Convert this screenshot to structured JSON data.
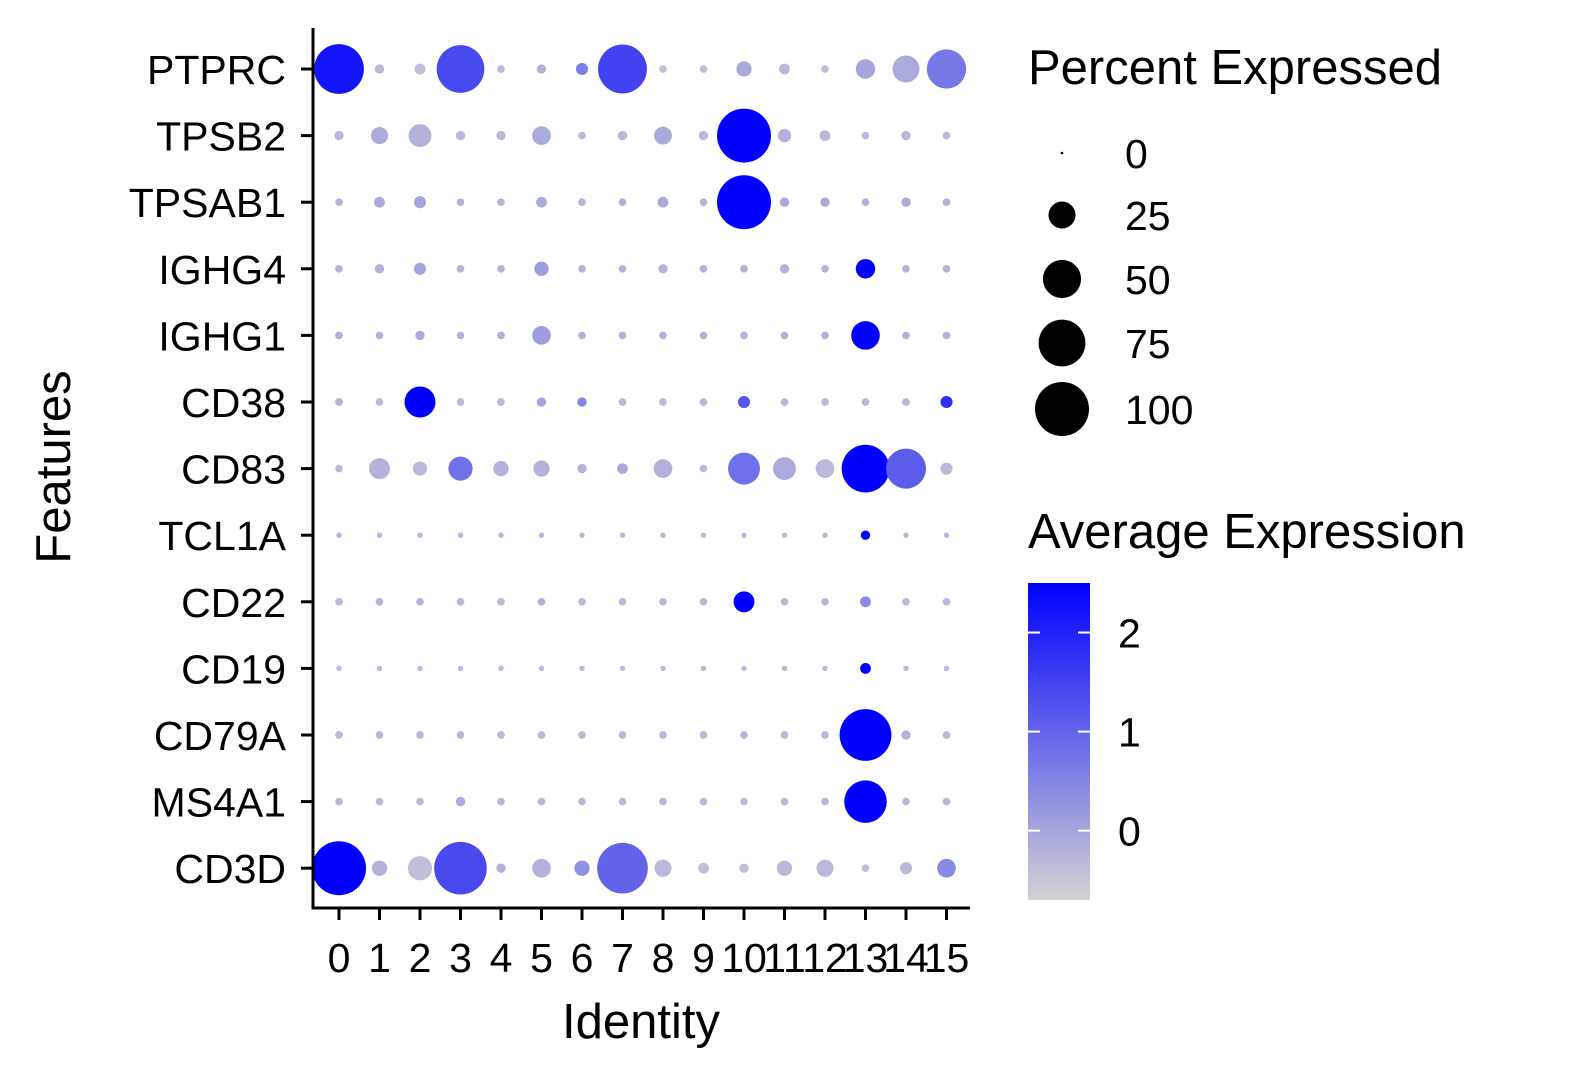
{
  "chart_data": {
    "type": "scatter",
    "subtype": "dot-plot",
    "xlabel": "Identity",
    "ylabel": "Features",
    "x_categories": [
      "0",
      "1",
      "2",
      "3",
      "4",
      "5",
      "6",
      "7",
      "8",
      "9",
      "10",
      "11",
      "12",
      "13",
      "14",
      "15"
    ],
    "y_categories": [
      "PTPRC",
      "TPSB2",
      "TPSAB1",
      "IGHG4",
      "IGHG1",
      "CD38",
      "CD83",
      "TCL1A",
      "CD22",
      "CD19",
      "CD79A",
      "MS4A1",
      "CD3D"
    ],
    "size_legend": {
      "title": "Percent Expressed",
      "breaks": [
        0,
        25,
        50,
        75,
        100
      ],
      "labels": [
        "0",
        "25",
        "50",
        "75",
        "100"
      ]
    },
    "color_legend": {
      "title": "Average Expression",
      "breaks": [
        0,
        1,
        2
      ],
      "labels": [
        "0",
        "1",
        "2"
      ],
      "range": [
        -0.7,
        2.5
      ],
      "low_color": "#d3d3d3",
      "high_color": "#0000ff"
    },
    "colors": {
      "low": "#d3d3d3",
      "high": "#0000ff",
      "axis": "#000000"
    },
    "grid": false,
    "legend_position": "right",
    "series": [
      {
        "name": "PTPRC",
        "pct": [
          85,
          3,
          4,
          78,
          2,
          3,
          5,
          82,
          2,
          2,
          8,
          4,
          2,
          13,
          25,
          53
        ],
        "avg": [
          2.2,
          -0.3,
          -0.4,
          1.4,
          -0.3,
          -0.2,
          0.6,
          1.5,
          -0.4,
          -0.4,
          -0.1,
          -0.3,
          -0.4,
          0.0,
          -0.1,
          0.7
        ]
      },
      {
        "name": "TPSB2",
        "pct": [
          3,
          10,
          18,
          3,
          3,
          12,
          2,
          3,
          11,
          3,
          100,
          6,
          4,
          2,
          3,
          2
        ],
        "avg": [
          -0.3,
          -0.1,
          -0.2,
          -0.3,
          -0.3,
          -0.1,
          -0.3,
          -0.3,
          -0.1,
          -0.3,
          2.5,
          -0.2,
          -0.3,
          -0.3,
          -0.3,
          -0.3
        ]
      },
      {
        "name": "TPSAB1",
        "pct": [
          2,
          4,
          5,
          2,
          2,
          4,
          2,
          2,
          4,
          2,
          100,
          3,
          3,
          2,
          3,
          2
        ],
        "avg": [
          -0.2,
          -0.1,
          0.0,
          -0.2,
          -0.2,
          -0.1,
          -0.2,
          -0.2,
          -0.1,
          -0.2,
          2.5,
          -0.1,
          -0.1,
          -0.2,
          -0.1,
          -0.2
        ]
      },
      {
        "name": "IGHG4",
        "pct": [
          2,
          3,
          5,
          2,
          2,
          7,
          2,
          2,
          3,
          2,
          2,
          3,
          2,
          13,
          2,
          2
        ],
        "avg": [
          -0.2,
          -0.2,
          0.0,
          -0.2,
          -0.2,
          0.1,
          -0.2,
          -0.2,
          -0.2,
          -0.2,
          -0.2,
          -0.2,
          -0.2,
          2.5,
          -0.2,
          -0.2
        ]
      },
      {
        "name": "IGHG1",
        "pct": [
          2,
          2,
          3,
          2,
          2,
          12,
          2,
          2,
          2,
          2,
          2,
          2,
          2,
          28,
          2,
          2
        ],
        "avg": [
          -0.2,
          -0.2,
          -0.1,
          -0.2,
          -0.2,
          0.1,
          -0.2,
          -0.2,
          -0.2,
          -0.2,
          -0.2,
          -0.2,
          -0.2,
          2.5,
          -0.2,
          -0.2
        ]
      },
      {
        "name": "CD38",
        "pct": [
          2,
          2,
          33,
          2,
          2,
          3,
          3,
          2,
          2,
          2,
          5,
          2,
          2,
          2,
          2,
          5
        ],
        "avg": [
          -0.2,
          -0.3,
          2.5,
          -0.3,
          -0.3,
          0.0,
          0.5,
          -0.3,
          -0.3,
          -0.3,
          1.2,
          -0.3,
          -0.3,
          -0.3,
          -0.3,
          1.8
        ]
      },
      {
        "name": "CD83",
        "pct": [
          2,
          15,
          7,
          20,
          8,
          9,
          3,
          4,
          12,
          2,
          35,
          18,
          12,
          78,
          55,
          5
        ],
        "avg": [
          -0.3,
          -0.2,
          -0.3,
          0.8,
          -0.2,
          -0.2,
          -0.2,
          -0.1,
          -0.2,
          -0.3,
          0.8,
          -0.1,
          -0.3,
          2.5,
          1.1,
          -0.3
        ]
      },
      {
        "name": "TCL1A",
        "pct": [
          1,
          1,
          1,
          1,
          1,
          1,
          1,
          1,
          1,
          1,
          1,
          1,
          1,
          3,
          1,
          1
        ],
        "avg": [
          -0.3,
          -0.3,
          -0.3,
          -0.3,
          -0.3,
          -0.3,
          -0.3,
          -0.3,
          -0.3,
          -0.3,
          -0.3,
          -0.3,
          -0.3,
          2.5,
          -0.3,
          -0.3
        ]
      },
      {
        "name": "CD22",
        "pct": [
          2,
          2,
          2,
          2,
          2,
          2,
          2,
          2,
          2,
          2,
          15,
          2,
          2,
          4,
          2,
          2
        ],
        "avg": [
          -0.3,
          -0.2,
          -0.2,
          -0.3,
          -0.3,
          -0.2,
          -0.3,
          -0.3,
          -0.3,
          -0.3,
          2.5,
          -0.3,
          -0.3,
          0.4,
          -0.3,
          -0.3
        ]
      },
      {
        "name": "CD19",
        "pct": [
          1,
          1,
          1,
          1,
          1,
          1,
          1,
          1,
          1,
          1,
          1,
          1,
          1,
          4,
          1,
          1
        ],
        "avg": [
          -0.3,
          -0.3,
          -0.3,
          -0.3,
          -0.3,
          -0.3,
          -0.3,
          -0.3,
          -0.3,
          -0.3,
          -0.3,
          -0.3,
          -0.3,
          2.5,
          -0.3,
          -0.3
        ]
      },
      {
        "name": "CD79A",
        "pct": [
          2,
          2,
          2,
          2,
          2,
          2,
          2,
          2,
          2,
          2,
          2,
          2,
          2,
          92,
          3,
          2
        ],
        "avg": [
          -0.3,
          -0.3,
          -0.3,
          -0.3,
          -0.3,
          -0.3,
          -0.3,
          -0.3,
          -0.3,
          -0.3,
          -0.3,
          -0.3,
          -0.3,
          2.5,
          -0.2,
          -0.3
        ]
      },
      {
        "name": "MS4A1",
        "pct": [
          2,
          2,
          2,
          3,
          2,
          2,
          2,
          2,
          2,
          2,
          2,
          2,
          2,
          62,
          2,
          2
        ],
        "avg": [
          -0.3,
          -0.3,
          -0.3,
          -0.1,
          -0.3,
          -0.3,
          -0.3,
          -0.3,
          -0.3,
          -0.3,
          -0.3,
          -0.3,
          -0.3,
          2.5,
          -0.3,
          -0.3
        ]
      },
      {
        "name": "CD3D",
        "pct": [
          100,
          8,
          20,
          95,
          3,
          12,
          8,
          88,
          10,
          4,
          3,
          8,
          10,
          2,
          5,
          12
        ],
        "avg": [
          2.5,
          -0.2,
          -0.4,
          1.4,
          -0.2,
          -0.2,
          0.3,
          1.0,
          -0.3,
          -0.4,
          -0.4,
          -0.3,
          -0.3,
          -0.4,
          -0.3,
          0.4
        ]
      }
    ]
  }
}
